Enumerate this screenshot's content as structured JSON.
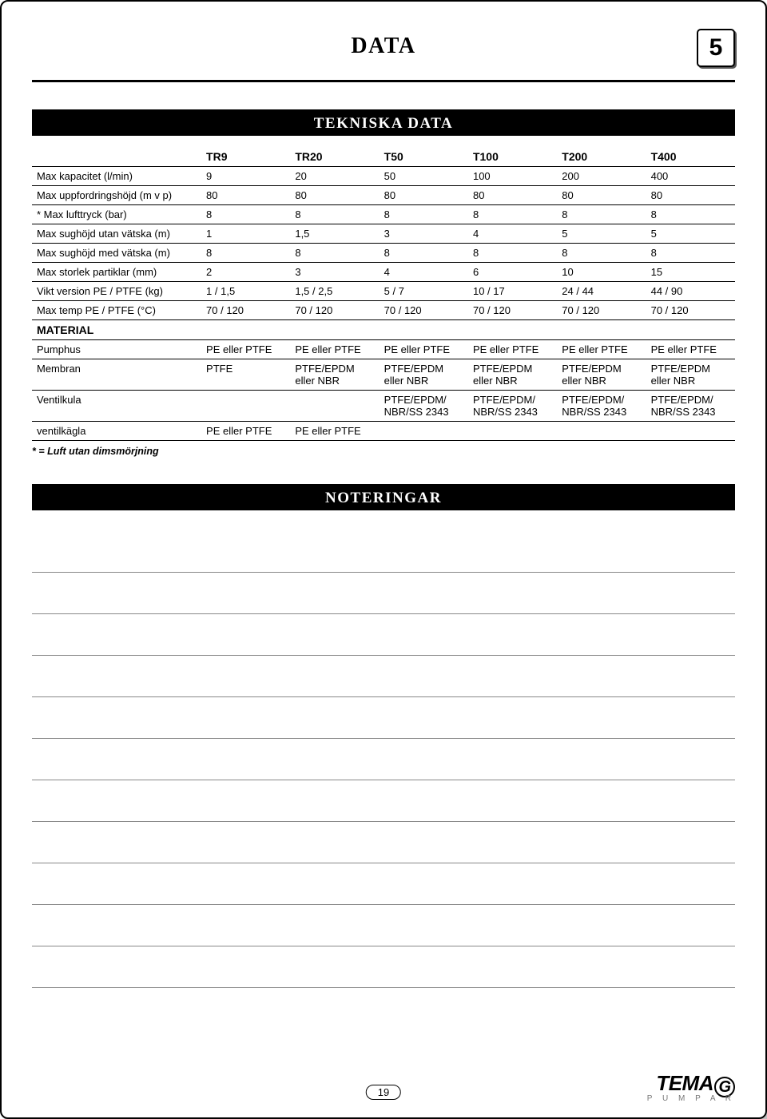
{
  "page": {
    "title": "DATA",
    "section_number": "5",
    "bottom_page": "19"
  },
  "sections": {
    "tekniska": "TEKNISKA DATA",
    "noteringar": "NOTERINGAR"
  },
  "table": {
    "columns": [
      "",
      "TR9",
      "TR20",
      "T50",
      "T100",
      "T200",
      "T400"
    ],
    "rows": [
      {
        "label": "Max kapacitet (l/min)",
        "c": [
          "9",
          "20",
          "50",
          "100",
          "200",
          "400"
        ]
      },
      {
        "label": "Max uppfordringshöjd (m v p)",
        "c": [
          "80",
          "80",
          "80",
          "80",
          "80",
          "80"
        ]
      },
      {
        "label": "* Max lufttryck (bar)",
        "c": [
          "8",
          "8",
          "8",
          "8",
          "8",
          "8"
        ]
      },
      {
        "label": "Max sughöjd utan vätska (m)",
        "c": [
          "1",
          "1,5",
          "3",
          "4",
          "5",
          "5"
        ]
      },
      {
        "label": "Max sughöjd med vätska (m)",
        "c": [
          "8",
          "8",
          "8",
          "8",
          "8",
          "8"
        ]
      },
      {
        "label": "Max storlek partiklar (mm)",
        "c": [
          "2",
          "3",
          "4",
          "6",
          "10",
          "15"
        ]
      },
      {
        "label": "Vikt version PE / PTFE (kg)",
        "c": [
          "1 / 1,5",
          "1,5 / 2,5",
          "5 / 7",
          "10 / 17",
          "24 / 44",
          "44 / 90"
        ]
      },
      {
        "label": "Max temp PE / PTFE (°C)",
        "c": [
          "70 / 120",
          "70 / 120",
          "70 / 120",
          "70 / 120",
          "70 / 120",
          "70 / 120"
        ]
      }
    ],
    "material_header": "MATERIAL",
    "material_rows": [
      {
        "label": "Pumphus",
        "c": [
          "PE eller PTFE",
          "PE eller PTFE",
          "PE eller PTFE",
          "PE eller PTFE",
          "PE eller PTFE",
          "PE eller PTFE"
        ]
      },
      {
        "label": "Membran",
        "c": [
          "PTFE",
          "PTFE/EPDM eller NBR",
          "PTFE/EPDM eller NBR",
          "PTFE/EPDM eller NBR",
          "PTFE/EPDM eller NBR",
          "PTFE/EPDM eller NBR"
        ]
      },
      {
        "label": "Ventilkula",
        "c": [
          "",
          "",
          "PTFE/EPDM/ NBR/SS 2343",
          "PTFE/EPDM/ NBR/SS 2343",
          "PTFE/EPDM/ NBR/SS 2343",
          "PTFE/EPDM/ NBR/SS 2343"
        ]
      },
      {
        "label": "ventilkägla",
        "c": [
          "PE eller PTFE",
          "PE eller PTFE",
          "",
          "",
          "",
          ""
        ]
      }
    ],
    "footnote": "* = Luft utan dimsmörjning"
  },
  "notes": {
    "line_count": 11
  },
  "logo": {
    "brand_prefix": "TEMA",
    "brand_g": "G",
    "sub": "P U M P A R"
  }
}
